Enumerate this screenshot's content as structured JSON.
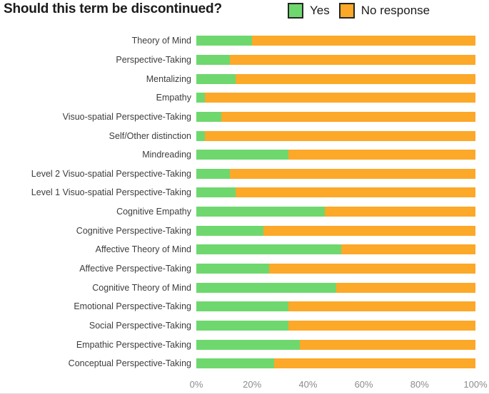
{
  "title": "Should this term be discontinued?",
  "colors": {
    "yes": "#6ED86E",
    "no_response": "#FCA828",
    "legend_swatch_border": "#262626",
    "title_text": "#1b1b1b",
    "category_text": "#3d3d3d",
    "axis_text": "#8c8c8c"
  },
  "legend": {
    "position": "top-right",
    "items": [
      {
        "label": "Yes",
        "color": "#6ED86E"
      },
      {
        "label": "No response",
        "color": "#FCA828"
      }
    ]
  },
  "chart_data": {
    "type": "bar",
    "orientation": "horizontal",
    "stacked": true,
    "stack_total": 100,
    "title": "Should this term be discontinued?",
    "xlabel": "",
    "ylabel": "",
    "grid": false,
    "legend_position": "top-right",
    "categories": [
      "Theory of Mind",
      "Perspective-Taking",
      "Mentalizing",
      "Empathy",
      "Visuo-spatial Perspective-Taking",
      "Self/Other distinction",
      "Mindreading",
      "Level 2 Visuo-spatial Perspective-Taking",
      "Level 1 Visuo-spatial Perspective-Taking",
      "Cognitive Empathy",
      "Cognitive Perspective-Taking",
      "Affective Theory of Mind",
      "Affective Perspective-Taking",
      "Cognitive Theory of Mind",
      "Emotional Perspective-Taking",
      "Social Perspective-Taking",
      "Empathic Perspective-Taking",
      "Conceptual Perspective-Taking"
    ],
    "series": [
      {
        "name": "Yes",
        "color": "#6ED86E",
        "values": [
          20,
          12,
          14,
          3,
          9,
          3,
          33,
          12,
          14,
          46,
          24,
          52,
          26,
          50,
          33,
          33,
          37,
          28
        ]
      },
      {
        "name": "No response",
        "color": "#FCA828",
        "values": [
          80,
          88,
          86,
          97,
          91,
          97,
          67,
          88,
          86,
          54,
          76,
          48,
          74,
          50,
          67,
          67,
          63,
          72
        ]
      }
    ],
    "x_axis": {
      "min": 0,
      "max": 100,
      "ticks": [
        "0%",
        "20%",
        "40%",
        "60%",
        "80%",
        "100%"
      ]
    }
  }
}
